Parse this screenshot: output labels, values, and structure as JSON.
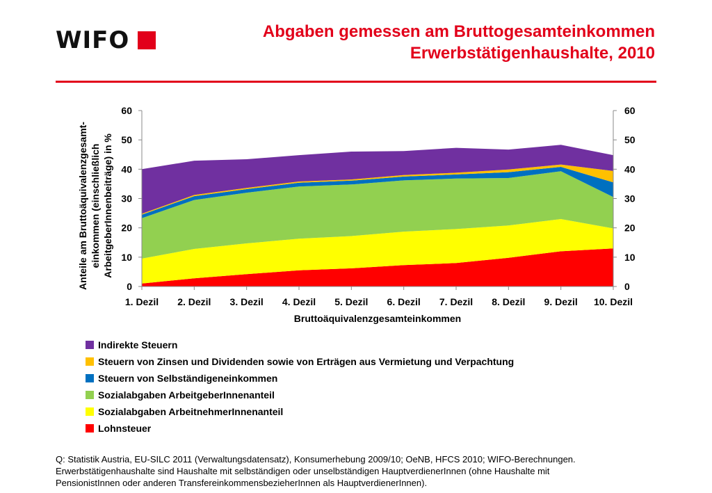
{
  "header": {
    "logo_text": "WIFO",
    "title_line1": "Abgaben gemessen am Bruttogesamteinkommen",
    "title_line2": "Erwerbstätigenhaushalte, 2010"
  },
  "colors": {
    "accent": "#e2001a",
    "Lohnsteuer": "#ff0000",
    "SozialabgabenAN": "#ffff00",
    "SozialabgabenAG": "#92d050",
    "SteuernSelbst": "#0070c0",
    "SteuernZinsen": "#ffc000",
    "IndirekteSteuern": "#7030a0"
  },
  "chart_data": {
    "type": "area",
    "stacked": true,
    "categories": [
      "1. Dezil",
      "2. Dezil",
      "3. Dezil",
      "4. Dezil",
      "5. Dezil",
      "6. Dezil",
      "7. Dezil",
      "8. Dezil",
      "9. Dezil",
      "10. Dezil"
    ],
    "xlabel": "Bruttoäquivalenzgesamteinkommen",
    "ylabel_lines": [
      "Anteile am Bruttoäquivalenzgesamt-",
      "einkommen (einschließlich",
      "ArbeitgeberInnenbeiträge)  in %"
    ],
    "ylim": [
      0,
      60
    ],
    "yticks": [
      0,
      10,
      20,
      30,
      40,
      50,
      60
    ],
    "y_axis_both_sides": true,
    "grid": false,
    "legend_position": "bottom",
    "series": [
      {
        "name": "Lohnsteuer",
        "color": "#ff0000",
        "values": [
          1.0,
          2.8,
          4.2,
          5.5,
          6.2,
          7.3,
          8.0,
          9.8,
          12.0,
          13.0
        ]
      },
      {
        "name": "Sozialabgaben ArbeitnehmerInnenanteil",
        "color": "#ffff00",
        "values": [
          8.5,
          10.0,
          10.5,
          10.8,
          11.0,
          11.4,
          11.6,
          11.0,
          11.0,
          6.8
        ]
      },
      {
        "name": "Sozialabgaben ArbeitgeberInnenanteil",
        "color": "#92d050",
        "values": [
          13.8,
          16.7,
          17.3,
          17.8,
          17.6,
          17.5,
          17.2,
          16.2,
          16.3,
          10.7
        ]
      },
      {
        "name": "Steuern von Selbständigeneinkommen",
        "color": "#0070c0",
        "values": [
          1.2,
          1.3,
          1.2,
          1.3,
          1.3,
          1.3,
          1.4,
          2.0,
          1.5,
          5.0
        ]
      },
      {
        "name": "Steuern von Zinsen und Dividenden sowie von Erträgen aus Vermietung und Verpachtung",
        "color": "#ffc000",
        "values": [
          0.3,
          0.4,
          0.4,
          0.4,
          0.4,
          0.5,
          0.6,
          0.9,
          0.8,
          3.9
        ]
      },
      {
        "name": "Indirekte Steuern",
        "color": "#7030a0",
        "values": [
          15.2,
          11.7,
          9.8,
          9.0,
          9.5,
          8.2,
          8.5,
          6.8,
          6.7,
          5.4
        ]
      }
    ]
  },
  "legend_order": [
    5,
    4,
    3,
    2,
    1,
    0
  ],
  "source": {
    "line1": "Q: Statistik Austria, EU-SILC 2011 (Verwaltungsdatensatz), Konsumerhebung 2009/10; OeNB, HFCS 2010; WIFO-Berechnungen.",
    "line2": "Erwerbstätigenhaushalte sind Haushalte mit selbständigen oder unselbständigen HauptverdienerInnen (ohne Haushalte mit",
    "line3": "PensionistInnen oder anderen TransfereinkommensbezieherInnen als HauptverdienerInnen)."
  }
}
